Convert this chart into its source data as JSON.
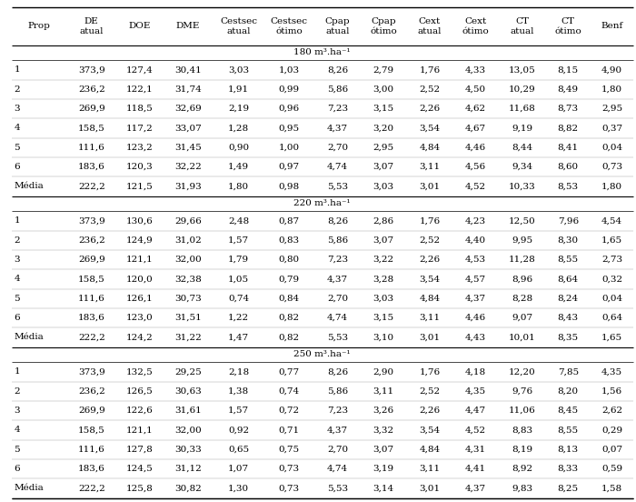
{
  "headers_line1": [
    "Prop",
    "DE",
    "DOE",
    "DME",
    "Cestsec",
    "Cestsec",
    "Cpap",
    "Cpap",
    "Cext",
    "Cext",
    "CT",
    "CT",
    "Benf"
  ],
  "headers_line2": [
    "",
    "atual",
    "",
    "",
    "atual",
    "ótimo",
    "atual",
    "ótimo",
    "atual",
    "ótimo",
    "atual",
    "ótimo",
    ""
  ],
  "section_180": {
    "label": "180 m³.ha⁻¹",
    "rows": [
      [
        "1",
        "373,9",
        "127,4",
        "30,41",
        "3,03",
        "1,03",
        "8,26",
        "2,79",
        "1,76",
        "4,33",
        "13,05",
        "8,15",
        "4,90"
      ],
      [
        "2",
        "236,2",
        "122,1",
        "31,74",
        "1,91",
        "0,99",
        "5,86",
        "3,00",
        "2,52",
        "4,50",
        "10,29",
        "8,49",
        "1,80"
      ],
      [
        "3",
        "269,9",
        "118,5",
        "32,69",
        "2,19",
        "0,96",
        "7,23",
        "3,15",
        "2,26",
        "4,62",
        "11,68",
        "8,73",
        "2,95"
      ],
      [
        "4",
        "158,5",
        "117,2",
        "33,07",
        "1,28",
        "0,95",
        "4,37",
        "3,20",
        "3,54",
        "4,67",
        "9,19",
        "8,82",
        "0,37"
      ],
      [
        "5",
        "111,6",
        "123,2",
        "31,45",
        "0,90",
        "1,00",
        "2,70",
        "2,95",
        "4,84",
        "4,46",
        "8,44",
        "8,41",
        "0,04"
      ],
      [
        "6",
        "183,6",
        "120,3",
        "32,22",
        "1,49",
        "0,97",
        "4,74",
        "3,07",
        "3,11",
        "4,56",
        "9,34",
        "8,60",
        "0,73"
      ],
      [
        "Média",
        "222,2",
        "121,5",
        "31,93",
        "1,80",
        "0,98",
        "5,53",
        "3,03",
        "3,01",
        "4,52",
        "10,33",
        "8,53",
        "1,80"
      ]
    ]
  },
  "section_220": {
    "label": "220 m³.ha⁻¹",
    "rows": [
      [
        "1",
        "373,9",
        "130,6",
        "29,66",
        "2,48",
        "0,87",
        "8,26",
        "2,86",
        "1,76",
        "4,23",
        "12,50",
        "7,96",
        "4,54"
      ],
      [
        "2",
        "236,2",
        "124,9",
        "31,02",
        "1,57",
        "0,83",
        "5,86",
        "3,07",
        "2,52",
        "4,40",
        "9,95",
        "8,30",
        "1,65"
      ],
      [
        "3",
        "269,9",
        "121,1",
        "32,00",
        "1,79",
        "0,80",
        "7,23",
        "3,22",
        "2,26",
        "4,53",
        "11,28",
        "8,55",
        "2,73"
      ],
      [
        "4",
        "158,5",
        "120,0",
        "32,38",
        "1,05",
        "0,79",
        "4,37",
        "3,28",
        "3,54",
        "4,57",
        "8,96",
        "8,64",
        "0,32"
      ],
      [
        "5",
        "111,6",
        "126,1",
        "30,73",
        "0,74",
        "0,84",
        "2,70",
        "3,03",
        "4,84",
        "4,37",
        "8,28",
        "8,24",
        "0,04"
      ],
      [
        "6",
        "183,6",
        "123,0",
        "31,51",
        "1,22",
        "0,82",
        "4,74",
        "3,15",
        "3,11",
        "4,46",
        "9,07",
        "8,43",
        "0,64"
      ],
      [
        "Média",
        "222,2",
        "124,2",
        "31,22",
        "1,47",
        "0,82",
        "5,53",
        "3,10",
        "3,01",
        "4,43",
        "10,01",
        "8,35",
        "1,65"
      ]
    ]
  },
  "section_250": {
    "label": "250 m³.ha⁻¹",
    "rows": [
      [
        "1",
        "373,9",
        "132,5",
        "29,25",
        "2,18",
        "0,77",
        "8,26",
        "2,90",
        "1,76",
        "4,18",
        "12,20",
        "7,85",
        "4,35"
      ],
      [
        "2",
        "236,2",
        "126,5",
        "30,63",
        "1,38",
        "0,74",
        "5,86",
        "3,11",
        "2,52",
        "4,35",
        "9,76",
        "8,20",
        "1,56"
      ],
      [
        "3",
        "269,9",
        "122,6",
        "31,61",
        "1,57",
        "0,72",
        "7,23",
        "3,26",
        "2,26",
        "4,47",
        "11,06",
        "8,45",
        "2,62"
      ],
      [
        "4",
        "158,5",
        "121,1",
        "32,00",
        "0,92",
        "0,71",
        "4,37",
        "3,32",
        "3,54",
        "4,52",
        "8,83",
        "8,55",
        "0,29"
      ],
      [
        "5",
        "111,6",
        "127,8",
        "30,33",
        "0,65",
        "0,75",
        "2,70",
        "3,07",
        "4,84",
        "4,31",
        "8,19",
        "8,13",
        "0,07"
      ],
      [
        "6",
        "183,6",
        "124,5",
        "31,12",
        "1,07",
        "0,73",
        "4,74",
        "3,19",
        "3,11",
        "4,41",
        "8,92",
        "8,33",
        "0,59"
      ],
      [
        "Média",
        "222,2",
        "125,8",
        "30,82",
        "1,30",
        "0,73",
        "5,53",
        "3,14",
        "3,01",
        "4,37",
        "9,83",
        "8,25",
        "1,58"
      ]
    ]
  },
  "bg_color": "#ffffff",
  "text_color": "#000000",
  "col_widths_raw": [
    2.5,
    2.3,
    2.1,
    2.3,
    2.3,
    2.3,
    2.1,
    2.1,
    2.1,
    2.1,
    2.1,
    2.1,
    1.9
  ],
  "header_fontsize": 7.5,
  "cell_fontsize": 7.5,
  "section_fontsize": 7.5
}
